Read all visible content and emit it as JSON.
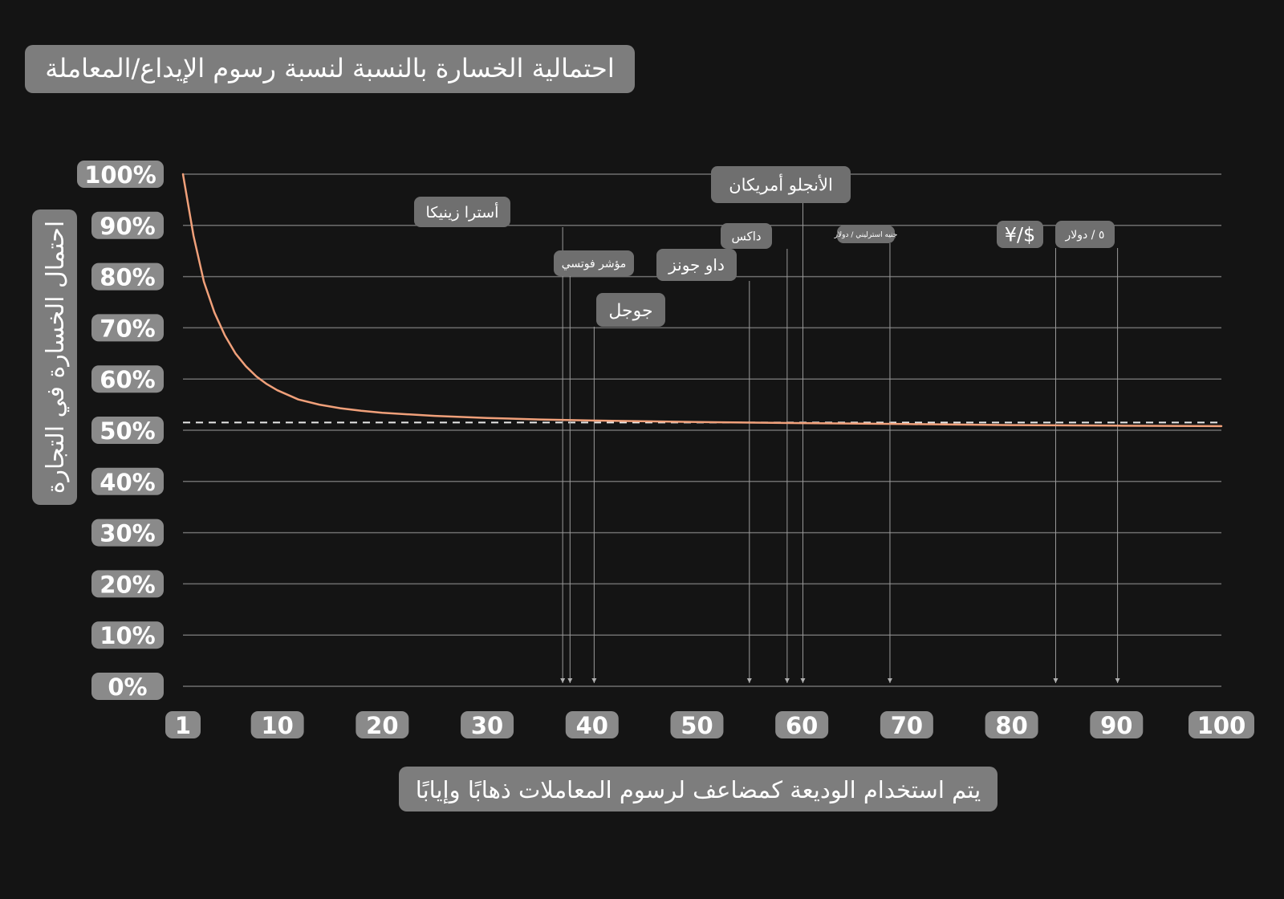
{
  "chart_data": {
    "type": "line",
    "title": "احتمالية الخسارة بالنسبة لنسبة رسوم الإيداع/المعاملة",
    "xlabel": "يتم استخدام الوديعة كمضاعف لرسوم المعاملات ذهابًا وإيابًا",
    "ylabel": "احتمال الخسارة في التجارة",
    "x_ticks": [
      "1",
      "10",
      "20",
      "30",
      "40",
      "50",
      "60",
      "70",
      "80",
      "90",
      "100"
    ],
    "y_ticks": [
      "0%",
      "10%",
      "20%",
      "30%",
      "40%",
      "50%",
      "60%",
      "70%",
      "80%",
      "90%",
      "100%"
    ],
    "xlim": [
      1,
      100
    ],
    "ylim": [
      0,
      100
    ],
    "grid": true,
    "reference_line": {
      "y": 51.5,
      "style": "dashed"
    },
    "series": [
      {
        "color": "#f0a07a",
        "x": [
          1,
          2,
          3,
          4,
          5,
          6,
          7,
          8,
          9,
          10,
          12,
          14,
          16,
          18,
          20,
          25,
          30,
          35,
          40,
          50,
          60,
          70,
          80,
          90,
          100
        ],
        "y": [
          100,
          88,
          79,
          73,
          68.5,
          65,
          62.5,
          60.5,
          59,
          57.8,
          56,
          55,
          54.3,
          53.8,
          53.4,
          52.8,
          52.4,
          52.1,
          51.9,
          51.6,
          51.4,
          51.2,
          51.0,
          50.9,
          50.8
        ]
      }
    ],
    "annotations": [
      {
        "label": "أسترا زينيكا",
        "x": 37.2
      },
      {
        "label": "مؤشر فوتسي",
        "x": 37.9
      },
      {
        "label": "جوجل",
        "x": 40.2
      },
      {
        "label": "داو جونز",
        "x": 55.0
      },
      {
        "label": "داكس",
        "x": 58.6
      },
      {
        "label": "الأنجلو أمريكان",
        "x": 60.1
      },
      {
        "label": "جنيه استرليني / دولار",
        "x": 68.4
      },
      {
        "label": "$/¥",
        "x": 84.2
      },
      {
        "label": "٥ / دولار",
        "x": 90.1
      }
    ]
  }
}
